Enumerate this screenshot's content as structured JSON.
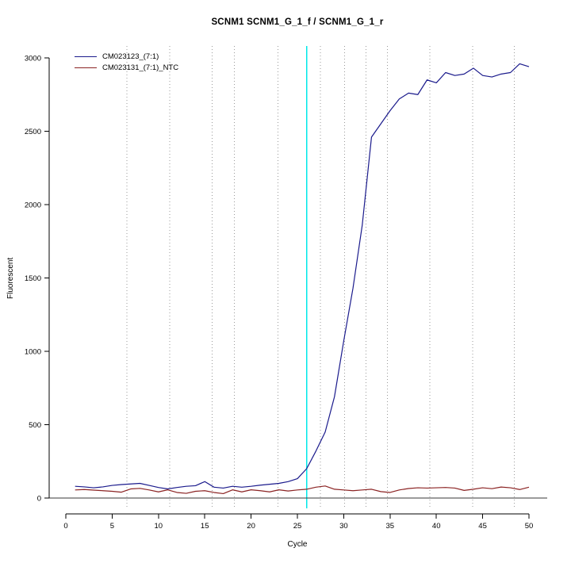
{
  "chart_data": {
    "type": "line",
    "title": "SCNM1 SCNM1_G_1_f / SCNM1_G_1_r",
    "xlabel": "Cycle",
    "ylabel": "Fluorescent",
    "xlim": [
      0,
      50
    ],
    "ylim": [
      0,
      3000
    ],
    "x_ticks": [
      0,
      5,
      10,
      15,
      20,
      25,
      30,
      35,
      40,
      45,
      50
    ],
    "y_ticks": [
      0,
      500,
      1000,
      1500,
      2000,
      2500,
      3000
    ],
    "grid": "dotted-vertical",
    "gridline_color": "#9a9a9a",
    "gridlines_x": [
      6.6,
      11.2,
      15.8,
      18.2,
      22.9,
      27.5,
      30.1,
      32.4,
      34.7,
      39.3,
      43.9,
      48.4
    ],
    "threshold_line": {
      "x": 26,
      "color": "#00e8e8"
    },
    "zero_line": {
      "y": 0,
      "color": "#3a3a3a"
    },
    "legend_position": "top-left",
    "x": [
      1,
      2,
      3,
      4,
      5,
      6,
      7,
      8,
      9,
      10,
      11,
      12,
      13,
      14,
      15,
      16,
      17,
      18,
      19,
      20,
      21,
      22,
      23,
      24,
      25,
      26,
      27,
      28,
      29,
      30,
      31,
      32,
      33,
      34,
      35,
      36,
      37,
      38,
      39,
      40,
      41,
      42,
      43,
      44,
      45,
      46,
      47,
      48,
      49,
      50
    ],
    "series": [
      {
        "name": "CM023123_(7:1)",
        "color": "#1a1a8c",
        "values": [
          80,
          76,
          70,
          76,
          86,
          92,
          96,
          100,
          86,
          72,
          62,
          72,
          80,
          84,
          112,
          74,
          68,
          80,
          74,
          80,
          88,
          94,
          100,
          112,
          132,
          200,
          320,
          450,
          690,
          1070,
          1430,
          1860,
          2460,
          2550,
          2640,
          2720,
          2760,
          2750,
          2850,
          2830,
          2900,
          2880,
          2890,
          2930,
          2880,
          2870,
          2890,
          2900,
          2960,
          2940
        ]
      },
      {
        "name": "CM023131_(7:1)_NTC",
        "color": "#8b2323",
        "values": [
          55,
          58,
          54,
          50,
          46,
          40,
          62,
          66,
          55,
          42,
          56,
          38,
          32,
          46,
          50,
          38,
          30,
          56,
          42,
          56,
          50,
          42,
          56,
          48,
          55,
          60,
          74,
          82,
          60,
          55,
          50,
          55,
          60,
          44,
          38,
          55,
          65,
          70,
          68,
          70,
          72,
          68,
          52,
          60,
          70,
          64,
          75,
          70,
          58,
          74
        ]
      }
    ]
  }
}
